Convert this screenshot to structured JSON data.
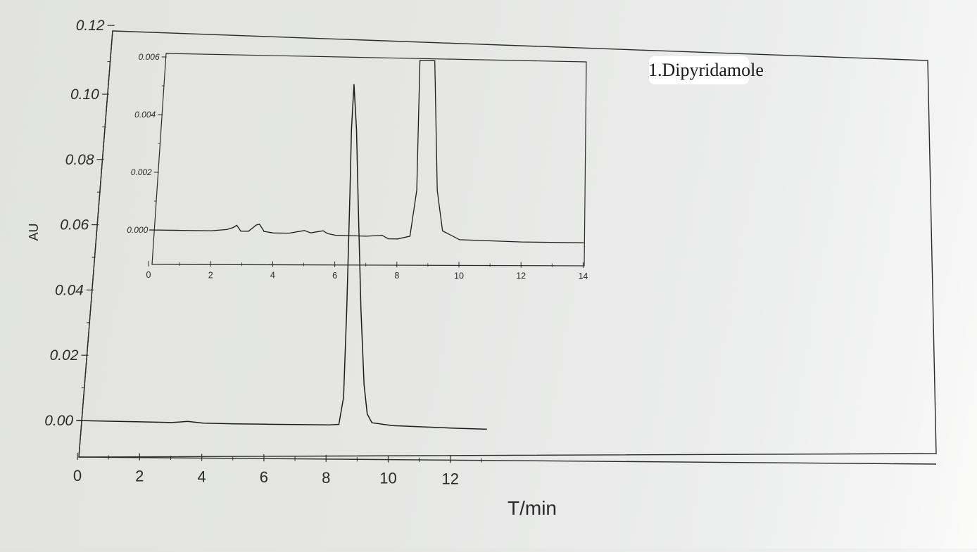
{
  "chart_data": [
    {
      "id": "main",
      "type": "line",
      "title": "",
      "xlabel": "T/min",
      "ylabel": "AU",
      "xlim": [
        0,
        13.2
      ],
      "ylim": [
        -0.01,
        0.12
      ],
      "x_ticks": [
        "0",
        "2",
        "4",
        "6",
        "8",
        "10",
        "12"
      ],
      "y_ticks": [
        "0.00",
        "0.02",
        "0.04",
        "0.06",
        "0.08",
        "0.10",
        "0.12"
      ],
      "grid": false,
      "series": [
        {
          "x": [
            0,
            1,
            2,
            3,
            3.5,
            4,
            5,
            6,
            7,
            8,
            8.3,
            8.45,
            8.55,
            8.65,
            8.7,
            8.78,
            8.86,
            8.92,
            9.0,
            9.1,
            9.2,
            9.35,
            10,
            11,
            12,
            13
          ],
          "y": [
            0.0,
            -0.0001,
            -0.0002,
            -0.0003,
            0.0001,
            -0.0004,
            -0.0005,
            -0.0005,
            -0.0005,
            -0.0005,
            -0.0003,
            0.008,
            0.035,
            0.07,
            0.09,
            0.104,
            0.09,
            0.065,
            0.035,
            0.012,
            0.003,
            0.0003,
            -0.0005,
            -0.0008,
            -0.0011,
            -0.0013
          ]
        }
      ],
      "annotations": [
        {
          "text": "1.Dipyridamole",
          "x": 8.8,
          "y": 0.104
        }
      ]
    },
    {
      "id": "inset",
      "type": "line",
      "title": "",
      "xlabel": "",
      "ylabel": "",
      "xlim": [
        0,
        14
      ],
      "ylim": [
        -0.0012,
        0.006
      ],
      "x_ticks": [
        "0",
        "2",
        "4",
        "6",
        "8",
        "10",
        "12",
        "14"
      ],
      "y_ticks": [
        "0.000",
        "0.002",
        "0.004",
        "0.006"
      ],
      "grid": false,
      "series": [
        {
          "x": [
            0,
            1,
            2,
            2.5,
            2.7,
            2.82,
            2.95,
            3.2,
            3.45,
            3.55,
            3.7,
            4,
            4.5,
            5.0,
            5.2,
            5.6,
            5.75,
            6.0,
            7.0,
            7.5,
            7.7,
            8.0,
            8.4,
            8.62,
            8.72,
            9.2,
            9.28,
            9.45,
            10,
            12,
            14
          ],
          "y": [
            0.0,
            0.0,
            0.0,
            5e-05,
            0.00012,
            0.0002,
            0.0,
            0.0,
            0.00022,
            0.00025,
            0.0,
            -5e-05,
            -5e-05,
            5e-05,
            -3e-05,
            5e-05,
            -5e-05,
            -0.0001,
            -0.00012,
            -8e-05,
            -0.0002,
            -0.0002,
            -0.0001,
            0.0015,
            0.006,
            0.006,
            0.0015,
            0.0001,
            -0.0002,
            -0.00025,
            -0.00025
          ]
        }
      ]
    }
  ]
}
